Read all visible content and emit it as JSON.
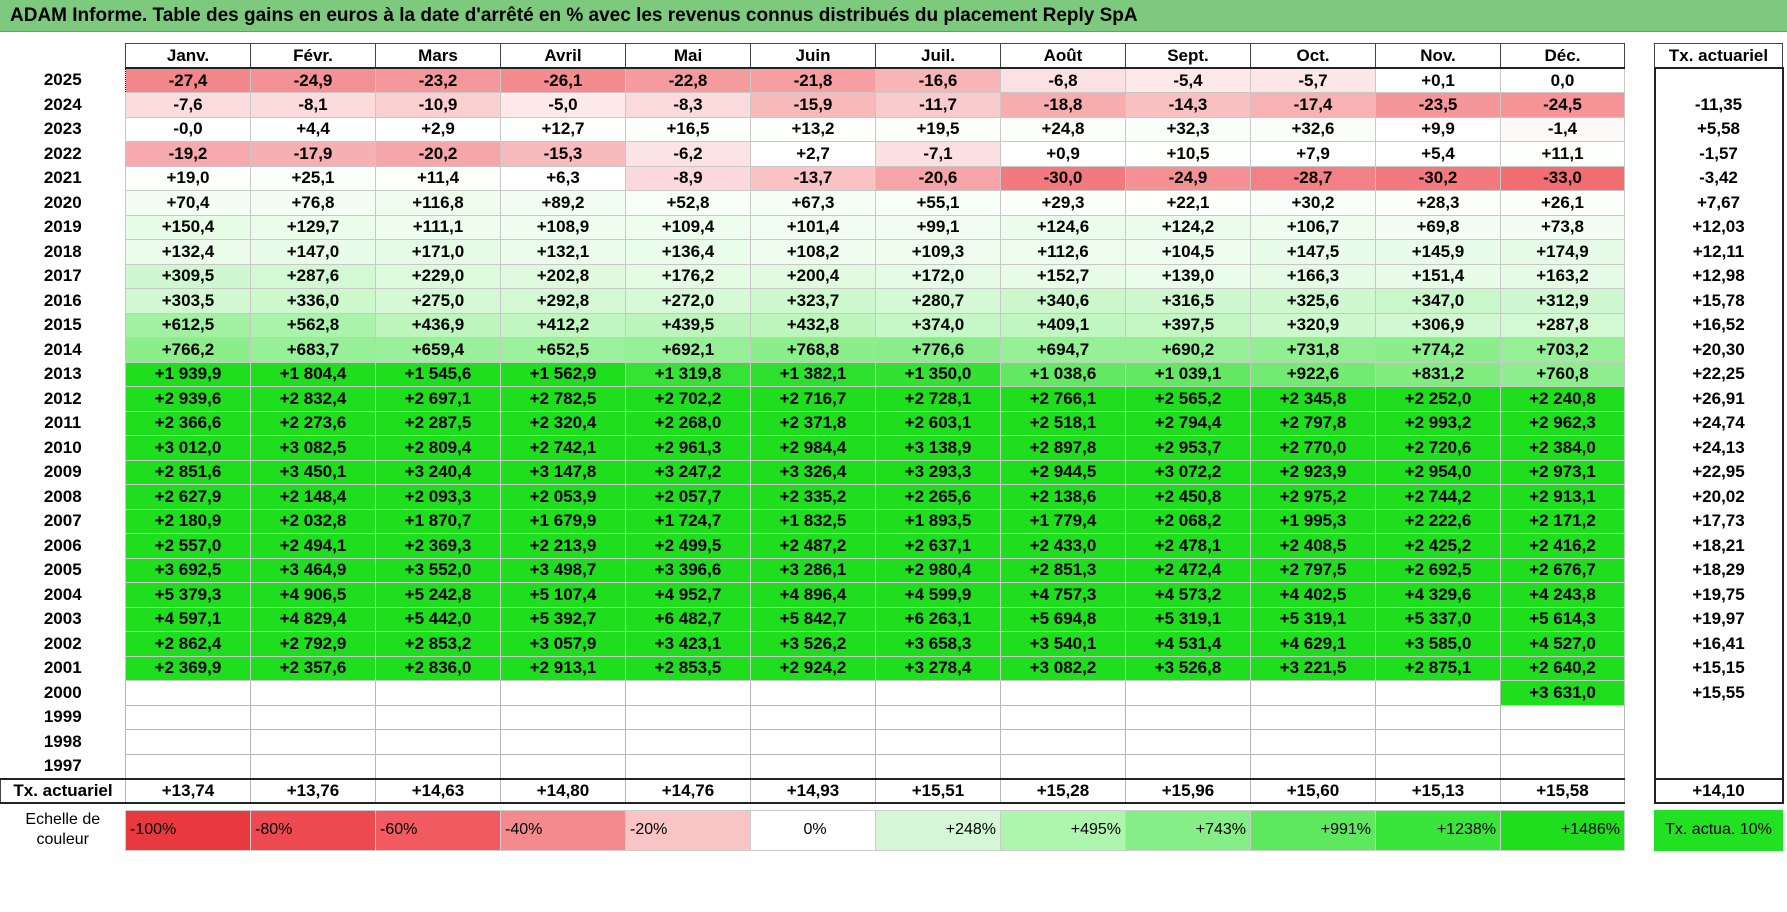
{
  "title": "ADAM Informe. Table des gains en euros à la date d'arrêté en % avec les revenus connus distribués du placement Reply SpA",
  "months": [
    "Janv.",
    "Févr.",
    "Mars",
    "Avril",
    "Mai",
    "Juin",
    "Juil.",
    "Août",
    "Sept.",
    "Oct.",
    "Nov.",
    "Déc."
  ],
  "tx_header": "Tx. actuariel",
  "rows": [
    {
      "year": "2025",
      "values": [
        "-27,4",
        "-24,9",
        "-23,2",
        "-26,1",
        "-22,8",
        "-21,8",
        "-16,6",
        "-6,8",
        "-5,4",
        "-5,7",
        "+0,1",
        "0,0"
      ],
      "tx": ""
    },
    {
      "year": "2024",
      "values": [
        "-7,6",
        "-8,1",
        "-10,9",
        "-5,0",
        "-8,3",
        "-15,9",
        "-11,7",
        "-18,8",
        "-14,3",
        "-17,4",
        "-23,5",
        "-24,5"
      ],
      "tx": "-11,35"
    },
    {
      "year": "2023",
      "values": [
        "-0,0",
        "+4,4",
        "+2,9",
        "+12,7",
        "+16,5",
        "+13,2",
        "+19,5",
        "+24,8",
        "+32,3",
        "+32,6",
        "+9,9",
        "-1,4"
      ],
      "tx": "+5,58"
    },
    {
      "year": "2022",
      "values": [
        "-19,2",
        "-17,9",
        "-20,2",
        "-15,3",
        "-6,2",
        "+2,7",
        "-7,1",
        "+0,9",
        "+10,5",
        "+7,9",
        "+5,4",
        "+11,1"
      ],
      "tx": "-1,57"
    },
    {
      "year": "2021",
      "values": [
        "+19,0",
        "+25,1",
        "+11,4",
        "+6,3",
        "-8,9",
        "-13,7",
        "-20,6",
        "-30,0",
        "-24,9",
        "-28,7",
        "-30,2",
        "-33,0"
      ],
      "tx": "-3,42"
    },
    {
      "year": "2020",
      "values": [
        "+70,4",
        "+76,8",
        "+116,8",
        "+89,2",
        "+52,8",
        "+67,3",
        "+55,1",
        "+29,3",
        "+22,1",
        "+30,2",
        "+28,3",
        "+26,1"
      ],
      "tx": "+7,67"
    },
    {
      "year": "2019",
      "values": [
        "+150,4",
        "+129,7",
        "+111,1",
        "+108,9",
        "+109,4",
        "+101,4",
        "+99,1",
        "+124,6",
        "+124,2",
        "+106,7",
        "+69,8",
        "+73,8"
      ],
      "tx": "+12,03"
    },
    {
      "year": "2018",
      "values": [
        "+132,4",
        "+147,0",
        "+171,0",
        "+132,1",
        "+136,4",
        "+108,2",
        "+109,3",
        "+112,6",
        "+104,5",
        "+147,5",
        "+145,9",
        "+174,9"
      ],
      "tx": "+12,11"
    },
    {
      "year": "2017",
      "values": [
        "+309,5",
        "+287,6",
        "+229,0",
        "+202,8",
        "+176,2",
        "+200,4",
        "+172,0",
        "+152,7",
        "+139,0",
        "+166,3",
        "+151,4",
        "+163,2"
      ],
      "tx": "+12,98"
    },
    {
      "year": "2016",
      "values": [
        "+303,5",
        "+336,0",
        "+275,0",
        "+292,8",
        "+272,0",
        "+323,7",
        "+280,7",
        "+340,6",
        "+316,5",
        "+325,6",
        "+347,0",
        "+312,9"
      ],
      "tx": "+15,78"
    },
    {
      "year": "2015",
      "values": [
        "+612,5",
        "+562,8",
        "+436,9",
        "+412,2",
        "+439,5",
        "+432,8",
        "+374,0",
        "+409,1",
        "+397,5",
        "+320,9",
        "+306,9",
        "+287,8"
      ],
      "tx": "+16,52"
    },
    {
      "year": "2014",
      "values": [
        "+766,2",
        "+683,7",
        "+659,4",
        "+652,5",
        "+692,1",
        "+768,8",
        "+776,6",
        "+694,7",
        "+690,2",
        "+731,8",
        "+774,2",
        "+703,2"
      ],
      "tx": "+20,30"
    },
    {
      "year": "2013",
      "values": [
        "+1 939,9",
        "+1 804,4",
        "+1 545,6",
        "+1 562,9",
        "+1 319,8",
        "+1 382,1",
        "+1 350,0",
        "+1 038,6",
        "+1 039,1",
        "+922,6",
        "+831,2",
        "+760,8"
      ],
      "tx": "+22,25"
    },
    {
      "year": "2012",
      "values": [
        "+2 939,6",
        "+2 832,4",
        "+2 697,1",
        "+2 782,5",
        "+2 702,2",
        "+2 716,7",
        "+2 728,1",
        "+2 766,1",
        "+2 565,2",
        "+2 345,8",
        "+2 252,0",
        "+2 240,8"
      ],
      "tx": "+26,91"
    },
    {
      "year": "2011",
      "values": [
        "+2 366,6",
        "+2 273,6",
        "+2 287,5",
        "+2 320,4",
        "+2 268,0",
        "+2 371,8",
        "+2 603,1",
        "+2 518,1",
        "+2 794,4",
        "+2 797,8",
        "+2 993,2",
        "+2 962,3"
      ],
      "tx": "+24,74"
    },
    {
      "year": "2010",
      "values": [
        "+3 012,0",
        "+3 082,5",
        "+2 809,4",
        "+2 742,1",
        "+2 961,3",
        "+2 984,4",
        "+3 138,9",
        "+2 897,8",
        "+2 953,7",
        "+2 770,0",
        "+2 720,6",
        "+2 384,0"
      ],
      "tx": "+24,13"
    },
    {
      "year": "2009",
      "values": [
        "+2 851,6",
        "+3 450,1",
        "+3 240,4",
        "+3 147,8",
        "+3 247,2",
        "+3 326,4",
        "+3 293,3",
        "+2 944,5",
        "+3 072,2",
        "+2 923,9",
        "+2 954,0",
        "+2 973,1"
      ],
      "tx": "+22,95"
    },
    {
      "year": "2008",
      "values": [
        "+2 627,9",
        "+2 148,4",
        "+2 093,3",
        "+2 053,9",
        "+2 057,7",
        "+2 335,2",
        "+2 265,6",
        "+2 138,6",
        "+2 450,8",
        "+2 975,2",
        "+2 744,2",
        "+2 913,1"
      ],
      "tx": "+20,02"
    },
    {
      "year": "2007",
      "values": [
        "+2 180,9",
        "+2 032,8",
        "+1 870,7",
        "+1 679,9",
        "+1 724,7",
        "+1 832,5",
        "+1 893,5",
        "+1 779,4",
        "+2 068,2",
        "+1 995,3",
        "+2 222,6",
        "+2 171,2"
      ],
      "tx": "+17,73"
    },
    {
      "year": "2006",
      "values": [
        "+2 557,0",
        "+2 494,1",
        "+2 369,3",
        "+2 213,9",
        "+2 499,5",
        "+2 487,2",
        "+2 637,1",
        "+2 433,0",
        "+2 478,1",
        "+2 408,5",
        "+2 425,2",
        "+2 416,2"
      ],
      "tx": "+18,21"
    },
    {
      "year": "2005",
      "values": [
        "+3 692,5",
        "+3 464,9",
        "+3 552,0",
        "+3 498,7",
        "+3 396,6",
        "+3 286,1",
        "+2 980,4",
        "+2 851,3",
        "+2 472,4",
        "+2 797,5",
        "+2 692,5",
        "+2 676,7"
      ],
      "tx": "+18,29"
    },
    {
      "year": "2004",
      "values": [
        "+5 379,3",
        "+4 906,5",
        "+5 242,8",
        "+5 107,4",
        "+4 952,7",
        "+4 896,4",
        "+4 599,9",
        "+4 757,3",
        "+4 573,2",
        "+4 402,5",
        "+4 329,6",
        "+4 243,8"
      ],
      "tx": "+19,75"
    },
    {
      "year": "2003",
      "values": [
        "+4 597,1",
        "+4 829,4",
        "+5 442,0",
        "+5 392,7",
        "+6 482,7",
        "+5 842,7",
        "+6 263,1",
        "+5 694,8",
        "+5 319,1",
        "+5 319,1",
        "+5 337,0",
        "+5 614,3"
      ],
      "tx": "+19,97"
    },
    {
      "year": "2002",
      "values": [
        "+2 862,4",
        "+2 792,9",
        "+2 853,2",
        "+3 057,9",
        "+3 423,1",
        "+3 526,2",
        "+3 658,3",
        "+3 540,1",
        "+4 531,4",
        "+4 629,1",
        "+3 585,0",
        "+4 527,0"
      ],
      "tx": "+16,41"
    },
    {
      "year": "2001",
      "values": [
        "+2 369,9",
        "+2 357,6",
        "+2 836,0",
        "+2 913,1",
        "+2 853,5",
        "+2 924,2",
        "+3 278,4",
        "+3 082,2",
        "+3 526,8",
        "+3 221,5",
        "+2 875,1",
        "+2 640,2"
      ],
      "tx": "+15,15"
    },
    {
      "year": "2000",
      "values": [
        "",
        "",
        "",
        "",
        "",
        "",
        "",
        "",
        "",
        "",
        "",
        "+3 631,0"
      ],
      "tx": "+15,55"
    },
    {
      "year": "1999",
      "values": [
        "",
        "",
        "",
        "",
        "",
        "",
        "",
        "",
        "",
        "",
        "",
        ""
      ],
      "tx": ""
    },
    {
      "year": "1998",
      "values": [
        "",
        "",
        "",
        "",
        "",
        "",
        "",
        "",
        "",
        "",
        "",
        ""
      ],
      "tx": ""
    },
    {
      "year": "1997",
      "values": [
        "",
        "",
        "",
        "",
        "",
        "",
        "",
        "",
        "",
        "",
        "",
        ""
      ],
      "tx": ""
    }
  ],
  "footer": {
    "label": "Tx. actuariel",
    "values": [
      "+13,74",
      "+13,76",
      "+14,63",
      "+14,80",
      "+14,76",
      "+14,93",
      "+15,51",
      "+15,28",
      "+15,96",
      "+15,60",
      "+15,13",
      "+15,58"
    ],
    "tx": "+14,10"
  },
  "scale": {
    "label": "Echelle de couleur",
    "items": [
      {
        "text": "-100%",
        "color": "#e8393f"
      },
      {
        "text": "-80%",
        "color": "#ec4a50"
      },
      {
        "text": "-60%",
        "color": "#f05a60"
      },
      {
        "text": "-40%",
        "color": "#f48a8e"
      },
      {
        "text": "-20%",
        "color": "#f9c4c6"
      },
      {
        "text": "0%",
        "color": "#ffffff"
      },
      {
        "text": "+248%",
        "color": "#d6f7d6"
      },
      {
        "text": "+495%",
        "color": "#aef5ae"
      },
      {
        "text": "+743%",
        "color": "#86ee86"
      },
      {
        "text": "+991%",
        "color": "#5ee85e"
      },
      {
        "text": "+1238%",
        "color": "#3ae43a"
      },
      {
        "text": "+1486%",
        "color": "#1ede1e"
      }
    ],
    "tx_legend": "Tx. actua. 10%"
  }
}
